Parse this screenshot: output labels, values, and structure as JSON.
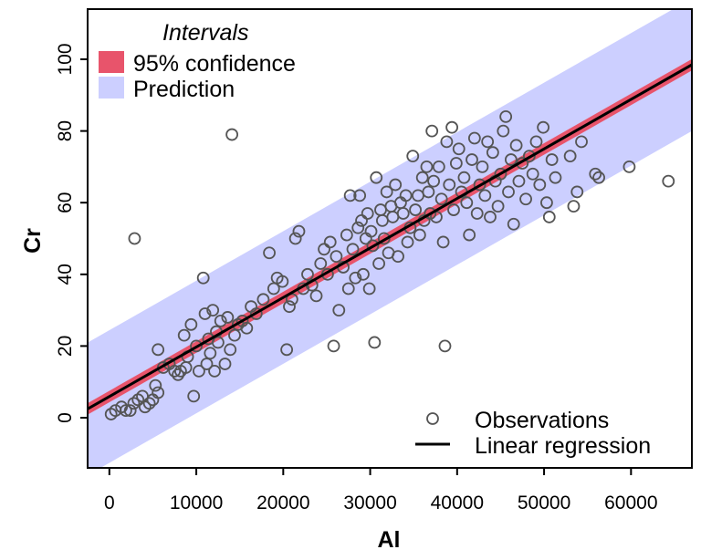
{
  "chart_data": {
    "type": "scatter",
    "xlabel": "Al",
    "ylabel": "Cr",
    "xlim": [
      -2500,
      67000
    ],
    "ylim": [
      -14,
      114
    ],
    "x_ticks": [
      0,
      10000,
      20000,
      30000,
      40000,
      50000,
      60000
    ],
    "x_tick_labels": [
      "0",
      "10000",
      "20000",
      "30000",
      "40000",
      "50000",
      "60000"
    ],
    "y_ticks": [
      0,
      20,
      40,
      60,
      80,
      100
    ],
    "y_tick_labels": [
      "0",
      "20",
      "40",
      "60",
      "80",
      "100"
    ],
    "regression": {
      "intercept": 5.9,
      "slope": 0.0013818
    },
    "confidence_band_halfwidth": 1.6,
    "prediction_band_halfwidth": 18.5,
    "colors": {
      "confidence": "#e8546b",
      "prediction": "#cccfff",
      "points": "#555555",
      "line": "#000000"
    },
    "legend_top": {
      "title": "Intervals",
      "position": "top-left",
      "items": [
        {
          "label": "95% confidence",
          "symbol": "confidence-swatch"
        },
        {
          "label": "Prediction",
          "symbol": "prediction-swatch"
        }
      ]
    },
    "legend_bottom": {
      "position": "bottom-right",
      "items": [
        {
          "label": "Observations",
          "symbol": "open-circle"
        },
        {
          "label": "Linear regression",
          "symbol": "line"
        }
      ]
    },
    "series": [
      {
        "name": "Observations",
        "points": [
          [
            200,
            1
          ],
          [
            700,
            2
          ],
          [
            1400,
            3
          ],
          [
            1900,
            2
          ],
          [
            2400,
            2
          ],
          [
            2800,
            4
          ],
          [
            2900,
            50
          ],
          [
            3300,
            5
          ],
          [
            3800,
            6
          ],
          [
            4100,
            3
          ],
          [
            4600,
            4
          ],
          [
            5000,
            5
          ],
          [
            5300,
            9
          ],
          [
            5600,
            7
          ],
          [
            5600,
            19
          ],
          [
            6200,
            14
          ],
          [
            6900,
            15
          ],
          [
            7500,
            13
          ],
          [
            7900,
            12
          ],
          [
            8200,
            13
          ],
          [
            8600,
            23
          ],
          [
            8800,
            14
          ],
          [
            9000,
            17
          ],
          [
            9400,
            26
          ],
          [
            9700,
            6
          ],
          [
            10000,
            20
          ],
          [
            10300,
            13
          ],
          [
            10800,
            39
          ],
          [
            11000,
            29
          ],
          [
            11200,
            15
          ],
          [
            11400,
            22
          ],
          [
            11600,
            18
          ],
          [
            11900,
            30
          ],
          [
            12100,
            13
          ],
          [
            12300,
            24
          ],
          [
            12500,
            21
          ],
          [
            12800,
            27
          ],
          [
            13300,
            15
          ],
          [
            13600,
            28
          ],
          [
            13900,
            19
          ],
          [
            14100,
            79
          ],
          [
            14400,
            23
          ],
          [
            14800,
            26
          ],
          [
            15300,
            27
          ],
          [
            15800,
            25
          ],
          [
            16300,
            31
          ],
          [
            16900,
            29
          ],
          [
            17700,
            33
          ],
          [
            18400,
            46
          ],
          [
            18900,
            36
          ],
          [
            19300,
            39
          ],
          [
            19900,
            38
          ],
          [
            20400,
            19
          ],
          [
            20700,
            31
          ],
          [
            21000,
            33
          ],
          [
            21400,
            50
          ],
          [
            21800,
            52
          ],
          [
            22300,
            36
          ],
          [
            22800,
            40
          ],
          [
            23300,
            37
          ],
          [
            23800,
            34
          ],
          [
            24300,
            43
          ],
          [
            24700,
            47
          ],
          [
            25100,
            40
          ],
          [
            25400,
            49
          ],
          [
            25800,
            20
          ],
          [
            26100,
            45
          ],
          [
            26400,
            30
          ],
          [
            26900,
            42
          ],
          [
            27300,
            51
          ],
          [
            27500,
            36
          ],
          [
            27700,
            62
          ],
          [
            28000,
            47
          ],
          [
            28300,
            39
          ],
          [
            28600,
            53
          ],
          [
            28800,
            62
          ],
          [
            29000,
            55
          ],
          [
            29200,
            40
          ],
          [
            29500,
            50
          ],
          [
            29700,
            57
          ],
          [
            29900,
            36
          ],
          [
            30100,
            52
          ],
          [
            30300,
            48
          ],
          [
            30500,
            21
          ],
          [
            30700,
            67
          ],
          [
            31000,
            43
          ],
          [
            31200,
            58
          ],
          [
            31400,
            55
          ],
          [
            31600,
            50
          ],
          [
            31900,
            63
          ],
          [
            32100,
            46
          ],
          [
            32400,
            59
          ],
          [
            32600,
            56
          ],
          [
            32900,
            65
          ],
          [
            33200,
            45
          ],
          [
            33500,
            60
          ],
          [
            33800,
            57
          ],
          [
            34100,
            62
          ],
          [
            34300,
            49
          ],
          [
            34600,
            53
          ],
          [
            34900,
            73
          ],
          [
            35200,
            58
          ],
          [
            35500,
            62
          ],
          [
            35700,
            51
          ],
          [
            36000,
            67
          ],
          [
            36200,
            55
          ],
          [
            36500,
            70
          ],
          [
            36700,
            63
          ],
          [
            36900,
            57
          ],
          [
            37100,
            80
          ],
          [
            37300,
            66
          ],
          [
            37600,
            56
          ],
          [
            37900,
            70
          ],
          [
            38200,
            61
          ],
          [
            38400,
            49
          ],
          [
            38600,
            20
          ],
          [
            38800,
            77
          ],
          [
            39100,
            65
          ],
          [
            39400,
            81
          ],
          [
            39600,
            58
          ],
          [
            39900,
            71
          ],
          [
            40200,
            75
          ],
          [
            40500,
            63
          ],
          [
            40800,
            67
          ],
          [
            41100,
            60
          ],
          [
            41400,
            51
          ],
          [
            41700,
            72
          ],
          [
            42000,
            78
          ],
          [
            42300,
            57
          ],
          [
            42600,
            65
          ],
          [
            42900,
            70
          ],
          [
            43200,
            62
          ],
          [
            43500,
            77
          ],
          [
            43800,
            56
          ],
          [
            44100,
            74
          ],
          [
            44400,
            66
          ],
          [
            44700,
            59
          ],
          [
            45000,
            68
          ],
          [
            45300,
            80
          ],
          [
            45600,
            84
          ],
          [
            45900,
            63
          ],
          [
            46200,
            72
          ],
          [
            46500,
            54
          ],
          [
            46800,
            76
          ],
          [
            47100,
            66
          ],
          [
            47500,
            71
          ],
          [
            47900,
            61
          ],
          [
            48300,
            73
          ],
          [
            48700,
            68
          ],
          [
            49100,
            77
          ],
          [
            49500,
            65
          ],
          [
            49900,
            81
          ],
          [
            50300,
            60
          ],
          [
            50600,
            56
          ],
          [
            50900,
            72
          ],
          [
            51300,
            67
          ],
          [
            53000,
            73
          ],
          [
            53400,
            59
          ],
          [
            53800,
            63
          ],
          [
            54300,
            77
          ],
          [
            55900,
            68
          ],
          [
            56300,
            67
          ],
          [
            59800,
            70
          ],
          [
            64300,
            66
          ]
        ]
      }
    ]
  }
}
